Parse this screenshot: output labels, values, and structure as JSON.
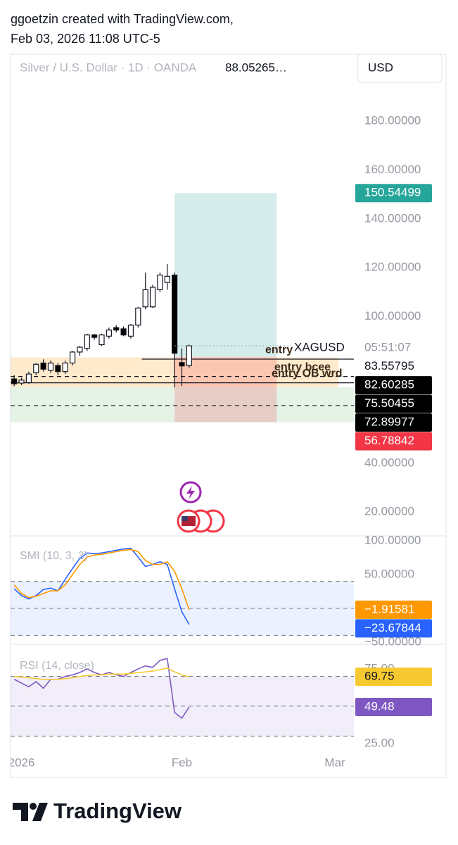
{
  "header": {
    "line1": "ggoetzin created with TradingView.com,",
    "line2": "Feb 03, 2026 11:08 UTC-5"
  },
  "currency": "USD",
  "footer": {
    "brand": "TradingView"
  },
  "chart_data": [
    {
      "type": "candlestick",
      "title": "Silver / U.S. Dollar · 1D · OANDA",
      "legend_value": "88.05265…",
      "countdown": "05:51:07",
      "categories": [
        null,
        null,
        null,
        null,
        null,
        null,
        null,
        null,
        null,
        null,
        null,
        null,
        null,
        null,
        null,
        null,
        null,
        null,
        null,
        null,
        null,
        null,
        null,
        null,
        null
      ],
      "series": [
        {
          "name": "XAGUSD",
          "up_color": "#ffffff",
          "down_color": "#000000",
          "open": [
            74.5,
            72.8,
            73,
            77,
            81,
            78,
            80,
            77.5,
            81,
            85.5,
            87,
            92.5,
            88.5,
            92,
            95.5,
            95,
            92,
            96.5,
            104,
            104,
            111,
            114,
            117,
            81.2,
            80
          ],
          "high": [
            76,
            75,
            77.5,
            81,
            82.5,
            82,
            81,
            82,
            86,
            88,
            93,
            93,
            93,
            95.5,
            96.5,
            96,
            97,
            104,
            118,
            113,
            118,
            121.5,
            118,
            87,
            88.6
          ],
          "low": [
            71.5,
            72,
            72.5,
            76,
            77.5,
            77,
            76,
            76.5,
            80,
            84,
            86,
            90.5,
            88,
            91,
            93.5,
            92,
            91,
            95.5,
            103,
            103.5,
            110,
            111,
            71,
            71.6,
            79
          ],
          "close": [
            72.5,
            74,
            76.5,
            80.5,
            78.5,
            81,
            77.5,
            81,
            85.5,
            87.5,
            92.5,
            91.5,
            92.5,
            94.5,
            94.5,
            92.5,
            96.5,
            103.5,
            111,
            112,
            117,
            116.5,
            85,
            79.8,
            88.05265
          ]
        }
      ],
      "ylim": [
        10.55,
        207.1
      ],
      "yticks": [
        {
          "value": 180,
          "label": "180.00000"
        },
        {
          "value": 160,
          "label": "160.00000"
        },
        {
          "value": 140,
          "label": "140.00000"
        },
        {
          "value": 120,
          "label": "120.00000"
        },
        {
          "value": 100,
          "label": "100.00000"
        },
        {
          "value": 40,
          "label": "40.00000"
        },
        {
          "value": 20,
          "label": "20.00000"
        }
      ],
      "zones": [
        {
          "from": 71.1,
          "to": 83.3,
          "x_to": 44.5,
          "color": "rgba(255,152,0,0.2)"
        },
        {
          "from": 56.8,
          "to": 71.1,
          "x_to": 46.6,
          "color": "rgba(76,175,80,0.15)"
        }
      ],
      "position": {
        "target": 150.54499,
        "entry": 83.55795,
        "stop": 56.78842,
        "x_from": 22,
        "x_to": 36,
        "target_color": "#26a69a",
        "stop_color": "#f23645"
      },
      "hlines": [
        {
          "value": 82.60285,
          "style": "solid",
          "x_from": 17.5,
          "badge": true
        },
        {
          "value": 75.50455,
          "style": "dashed",
          "badge": true
        },
        {
          "value": 72.89977,
          "style": "solid",
          "badge": true
        },
        {
          "value": 63.6,
          "style": "dashed",
          "badge": false
        }
      ],
      "annotations": [
        "entry",
        "entry bcee",
        "entry OB wrd"
      ]
    },
    {
      "type": "line",
      "title": "SMI (10, 3, 3)",
      "series": [
        {
          "color": "#2962ff",
          "values": [
            29,
            19,
            14,
            19,
            28,
            30,
            26,
            43,
            59,
            74,
            82,
            81,
            82,
            84,
            86,
            88,
            89,
            76,
            62,
            65,
            69,
            65,
            29,
            -5,
            -23.67844
          ],
          "value_labels": [
            null,
            null,
            null,
            null,
            null,
            null,
            null,
            null,
            null,
            null,
            null,
            null,
            null,
            null,
            null,
            null,
            null,
            null,
            null,
            null,
            null,
            null,
            null,
            null,
            "−23.67844"
          ]
        },
        {
          "color": "#ff9800",
          "values": [
            35,
            22,
            16,
            18,
            22,
            26,
            26,
            35,
            50,
            65,
            76,
            79,
            80,
            82,
            84,
            86,
            87,
            84,
            71,
            65,
            65,
            69,
            55,
            29,
            -1.91581
          ],
          "value_labels": [
            null,
            null,
            null,
            null,
            null,
            null,
            null,
            null,
            null,
            null,
            null,
            null,
            null,
            null,
            null,
            null,
            null,
            null,
            null,
            null,
            null,
            null,
            null,
            null,
            "−1.91581"
          ]
        }
      ],
      "ylim": [
        -50,
        106.25
      ],
      "yticks": [
        {
          "value": 100,
          "label": "100.00000"
        },
        {
          "value": 50,
          "label": "50.00000"
        },
        {
          "value": -50,
          "label": "−50.00000"
        }
      ],
      "levels": [
        40,
        0,
        -40
      ],
      "band_color": "rgba(41,98,255,0.09)"
    },
    {
      "type": "line",
      "title": "RSI (14, close)",
      "series": [
        {
          "color": "#7e57c2",
          "values": [
            68,
            65.5,
            63,
            66.5,
            62,
            68,
            68,
            70,
            71,
            72.6,
            75,
            72.6,
            71,
            72.6,
            71,
            70,
            72.6,
            75,
            77,
            76,
            80.7,
            82,
            45.8,
            42,
            49.48
          ]
        },
        {
          "color": "#f7c930",
          "values": [
            70,
            69.5,
            69,
            68.5,
            68,
            68,
            68,
            68.5,
            69,
            70,
            70.5,
            71,
            71,
            71.5,
            71.5,
            71.5,
            72,
            72.5,
            73,
            73.5,
            74.5,
            75.5,
            73,
            71,
            69.75
          ]
        }
      ],
      "ylim": [
        19.3,
        91
      ],
      "yticks": [
        {
          "value": 75,
          "label": "75.00"
        },
        {
          "value": 25,
          "label": "25.00"
        }
      ],
      "levels": [
        70,
        50,
        30
      ],
      "band_color": "rgba(126,87,194,0.1)",
      "xlim": [
        -0.5,
        46.6
      ],
      "xticks": [
        {
          "value": 1,
          "label": "2026"
        },
        {
          "value": 23,
          "label": "Feb"
        },
        {
          "value": 44,
          "label": "Mar"
        }
      ]
    }
  ]
}
